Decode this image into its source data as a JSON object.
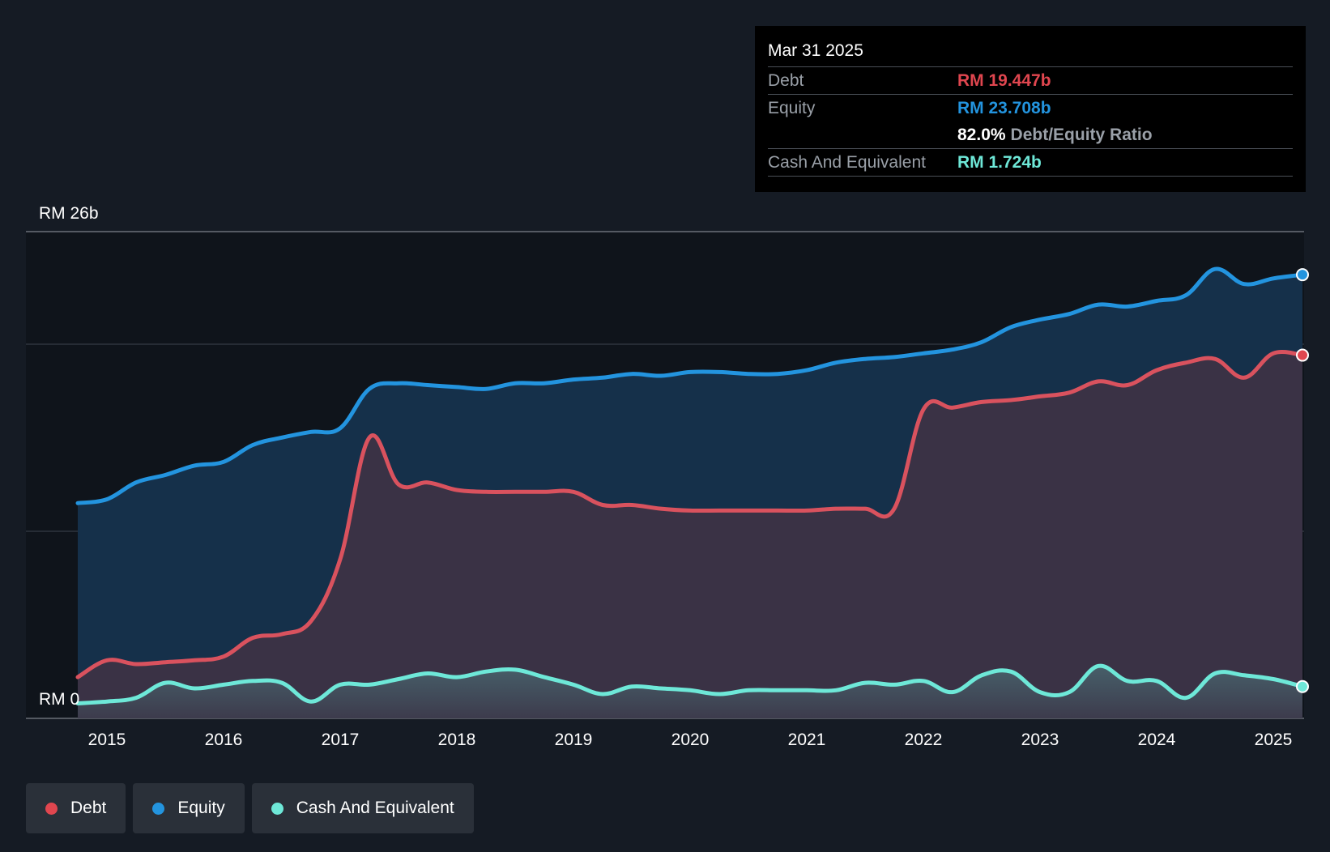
{
  "colors": {
    "background": "#151b24",
    "debt": "#e0464f",
    "equity": "#2394df",
    "cash": "#6ee8d8"
  },
  "tooltip": {
    "date": "Mar 31 2025",
    "debt_label": "Debt",
    "debt_value": "RM 19.447b",
    "equity_label": "Equity",
    "equity_value": "RM 23.708b",
    "ratio_value": "82.0%",
    "ratio_label": "Debt/Equity Ratio",
    "cash_label": "Cash And Equivalent",
    "cash_value": "RM 1.724b"
  },
  "legend": [
    {
      "label": "Debt",
      "color": "#e0464f"
    },
    {
      "label": "Equity",
      "color": "#2394df"
    },
    {
      "label": "Cash And Equivalent",
      "color": "#6ee8d8"
    }
  ],
  "chart_data": {
    "type": "area",
    "title": "",
    "xlabel": "",
    "ylabel": "",
    "ylim": [
      0,
      26
    ],
    "y_tick_labels": {
      "top": "RM 26b",
      "bottom": "RM 0"
    },
    "x_tick_labels": [
      "2015",
      "2016",
      "2017",
      "2018",
      "2019",
      "2020",
      "2021",
      "2022",
      "2023",
      "2024",
      "2025"
    ],
    "x_tick_years": [
      2015,
      2016,
      2017,
      2018,
      2019,
      2020,
      2021,
      2022,
      2023,
      2024,
      2025
    ],
    "x_range": [
      2014.75,
      2025.25
    ],
    "series": [
      {
        "name": "Equity",
        "key": "equity",
        "x": [
          2014.75,
          2015.0,
          2015.25,
          2015.5,
          2015.75,
          2016.0,
          2016.25,
          2016.5,
          2016.75,
          2017.0,
          2017.25,
          2017.5,
          2017.75,
          2018.0,
          2018.25,
          2018.5,
          2018.75,
          2019.0,
          2019.25,
          2019.5,
          2019.75,
          2020.0,
          2020.25,
          2020.5,
          2020.75,
          2021.0,
          2021.25,
          2021.5,
          2021.75,
          2022.0,
          2022.25,
          2022.5,
          2022.75,
          2023.0,
          2023.25,
          2023.5,
          2023.75,
          2024.0,
          2024.25,
          2024.5,
          2024.75,
          2025.0,
          2025.25
        ],
        "values": [
          11.5,
          11.7,
          12.6,
          13.0,
          13.5,
          13.7,
          14.6,
          15.0,
          15.3,
          15.5,
          17.6,
          17.9,
          17.8,
          17.7,
          17.6,
          17.9,
          17.9,
          18.1,
          18.2,
          18.4,
          18.3,
          18.5,
          18.5,
          18.4,
          18.4,
          18.6,
          19.0,
          19.2,
          19.3,
          19.5,
          19.7,
          20.1,
          20.9,
          21.3,
          21.6,
          22.1,
          22.0,
          22.3,
          22.6,
          24.0,
          23.2,
          23.5,
          23.7
        ]
      },
      {
        "name": "Debt",
        "key": "debt",
        "x": [
          2014.75,
          2015.0,
          2015.25,
          2015.5,
          2015.75,
          2016.0,
          2016.25,
          2016.5,
          2016.75,
          2017.0,
          2017.25,
          2017.5,
          2017.75,
          2018.0,
          2018.25,
          2018.5,
          2018.75,
          2019.0,
          2019.25,
          2019.5,
          2019.75,
          2020.0,
          2020.25,
          2020.5,
          2020.75,
          2021.0,
          2021.25,
          2021.5,
          2021.75,
          2022.0,
          2022.25,
          2022.5,
          2022.75,
          2023.0,
          2023.25,
          2023.5,
          2023.75,
          2024.0,
          2024.25,
          2024.5,
          2024.75,
          2025.0,
          2025.25
        ],
        "values": [
          2.2,
          3.1,
          2.9,
          3.0,
          3.1,
          3.3,
          4.3,
          4.5,
          5.2,
          8.5,
          15.0,
          12.5,
          12.6,
          12.2,
          12.1,
          12.1,
          12.1,
          12.1,
          11.4,
          11.4,
          11.2,
          11.1,
          11.1,
          11.1,
          11.1,
          11.1,
          11.2,
          11.2,
          11.2,
          16.5,
          16.6,
          16.9,
          17.0,
          17.2,
          17.4,
          18.0,
          17.8,
          18.6,
          19.0,
          19.2,
          18.2,
          19.5,
          19.4
        ]
      },
      {
        "name": "Cash And Equivalent",
        "key": "cash",
        "x": [
          2014.75,
          2015.0,
          2015.25,
          2015.5,
          2015.75,
          2016.0,
          2016.25,
          2016.5,
          2016.75,
          2017.0,
          2017.25,
          2017.5,
          2017.75,
          2018.0,
          2018.25,
          2018.5,
          2018.75,
          2019.0,
          2019.25,
          2019.5,
          2019.75,
          2020.0,
          2020.25,
          2020.5,
          2020.75,
          2021.0,
          2021.25,
          2021.5,
          2021.75,
          2022.0,
          2022.25,
          2022.5,
          2022.75,
          2023.0,
          2023.25,
          2023.5,
          2023.75,
          2024.0,
          2024.25,
          2024.5,
          2024.75,
          2025.0,
          2025.25
        ],
        "values": [
          0.8,
          0.9,
          1.1,
          1.9,
          1.6,
          1.8,
          2.0,
          1.9,
          0.9,
          1.8,
          1.8,
          2.1,
          2.4,
          2.2,
          2.5,
          2.6,
          2.2,
          1.8,
          1.3,
          1.7,
          1.6,
          1.5,
          1.3,
          1.5,
          1.5,
          1.5,
          1.5,
          1.9,
          1.8,
          2.0,
          1.4,
          2.3,
          2.5,
          1.4,
          1.4,
          2.8,
          2.0,
          2.0,
          1.1,
          2.4,
          2.3,
          2.1,
          1.7
        ]
      }
    ]
  }
}
